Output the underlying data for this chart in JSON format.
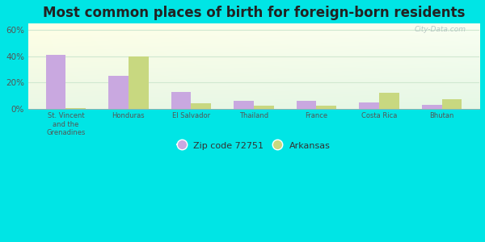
{
  "title": "Most common places of birth for foreign-born residents",
  "categories": [
    "St. Vincent\nand the\nGrenadines",
    "Honduras",
    "El Salvador",
    "Thailand",
    "France",
    "Costa Rica",
    "Bhutan"
  ],
  "zip_values": [
    41,
    25,
    13,
    6,
    6,
    5,
    3
  ],
  "arkansas_values": [
    0.5,
    40,
    4,
    2.5,
    2,
    12,
    7
  ],
  "zip_color": "#c9a8e0",
  "arkansas_color": "#c8d880",
  "background_outer": "#00e5e5",
  "title_fontsize": 12,
  "ylabel_ticks": [
    "0%",
    "20%",
    "40%",
    "60%"
  ],
  "ytick_vals": [
    0,
    20,
    40,
    60
  ],
  "ylim": [
    0,
    65
  ],
  "legend_zip": "Zip code 72751",
  "legend_arkansas": "Arkansas",
  "bar_width": 0.32,
  "watermark": "City-Data.com",
  "grad_colors": [
    "#e8f8e8",
    "#f5fff0",
    "#e0f8f0"
  ],
  "grid_color": "#d0e8d0"
}
